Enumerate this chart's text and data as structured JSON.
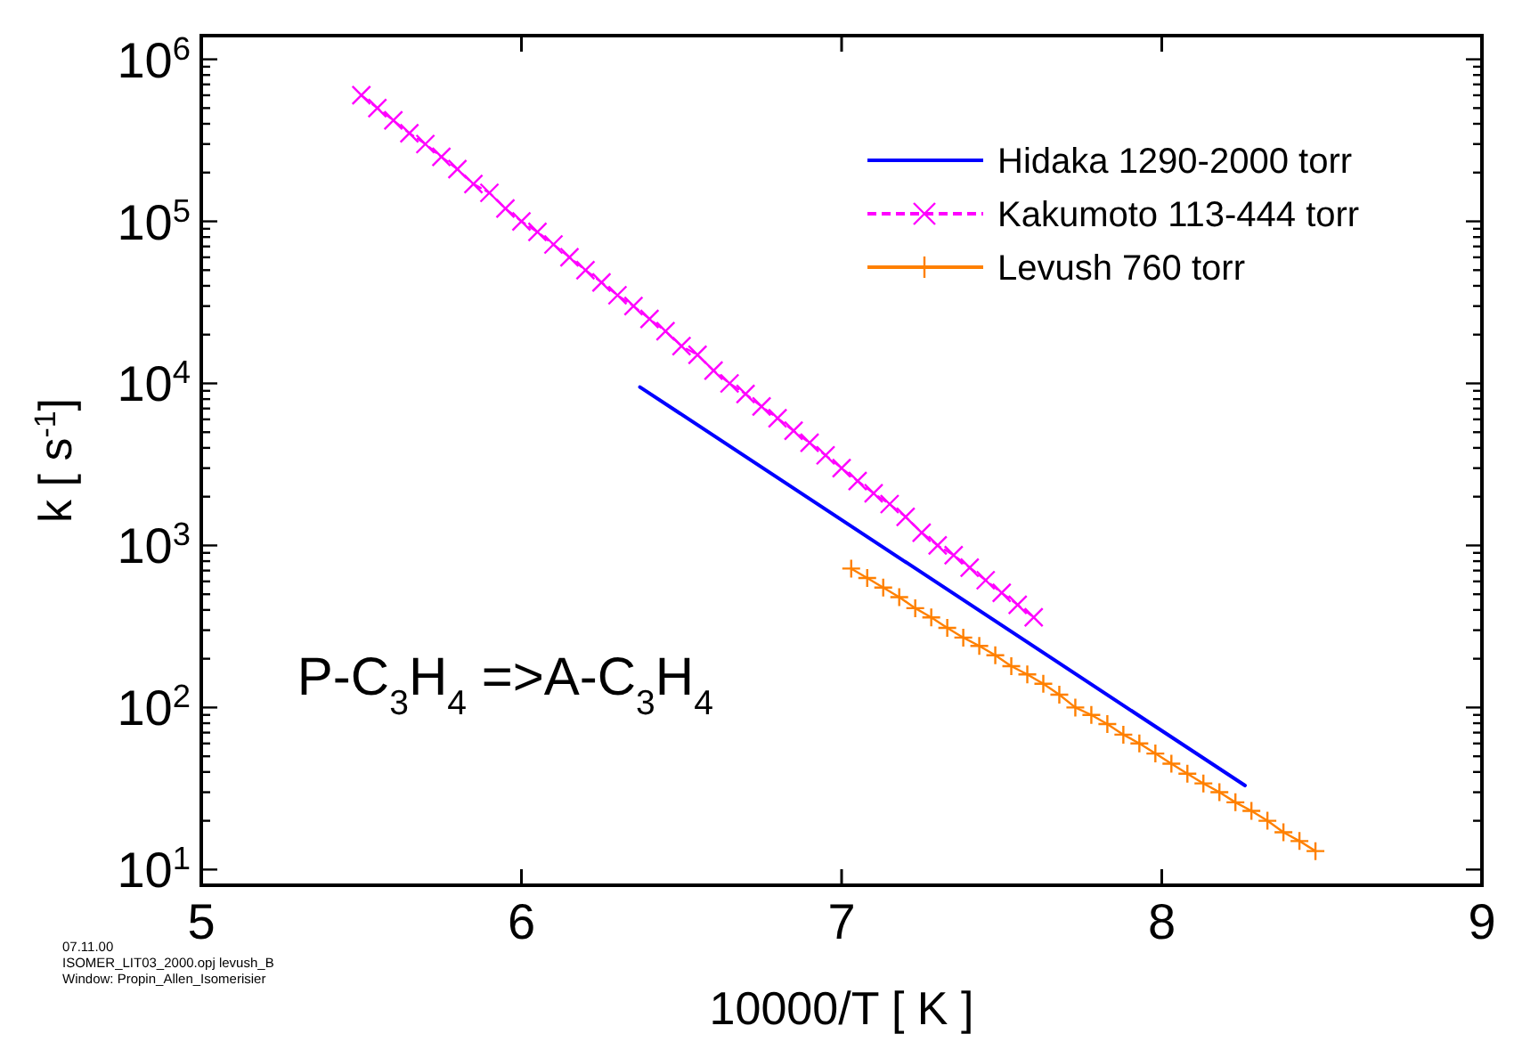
{
  "chart_data": {
    "type": "line",
    "xlabel": "10000/T [ K ]",
    "ylabel": "k [ s$^{-1}$]",
    "log": "y",
    "grid": false,
    "legend": "top right",
    "xlim": [
      5,
      9
    ],
    "xticks": [
      5,
      6,
      7,
      8,
      9
    ],
    "ylim": [
      8,
      1400000
    ],
    "yticks": [
      {
        "value": 10,
        "label": "10$^{1}$"
      },
      {
        "value": 20,
        "label": null
      },
      {
        "value": 30,
        "label": null
      },
      {
        "value": 40,
        "label": null
      },
      {
        "value": 50,
        "label": null
      },
      {
        "value": 60,
        "label": null
      },
      {
        "value": 70,
        "label": null
      },
      {
        "value": 80,
        "label": null
      },
      {
        "value": 90,
        "label": null
      },
      {
        "value": 100,
        "label": "10$^{2}$"
      },
      {
        "value": 200,
        "label": null
      },
      {
        "value": 300,
        "label": null
      },
      {
        "value": 400,
        "label": null
      },
      {
        "value": 500,
        "label": null
      },
      {
        "value": 600,
        "label": null
      },
      {
        "value": 700,
        "label": null
      },
      {
        "value": 800,
        "label": null
      },
      {
        "value": 900,
        "label": null
      },
      {
        "value": 1000,
        "label": "10$^{3}$"
      },
      {
        "value": 2000,
        "label": null
      },
      {
        "value": 3000,
        "label": null
      },
      {
        "value": 4000,
        "label": null
      },
      {
        "value": 5000,
        "label": null
      },
      {
        "value": 6000,
        "label": null
      },
      {
        "value": 7000,
        "label": null
      },
      {
        "value": 8000,
        "label": null
      },
      {
        "value": 9000,
        "label": null
      },
      {
        "value": 10000,
        "label": "10$^{4}$"
      },
      {
        "value": 20000,
        "label": null
      },
      {
        "value": 30000,
        "label": null
      },
      {
        "value": 40000,
        "label": null
      },
      {
        "value": 50000,
        "label": null
      },
      {
        "value": 60000,
        "label": null
      },
      {
        "value": 70000,
        "label": null
      },
      {
        "value": 80000,
        "label": null
      },
      {
        "value": 90000,
        "label": null
      },
      {
        "value": 100000,
        "label": "10$^{5}$"
      },
      {
        "value": 200000,
        "label": null
      },
      {
        "value": 300000,
        "label": null
      },
      {
        "value": 400000,
        "label": null
      },
      {
        "value": 500000,
        "label": null
      },
      {
        "value": 600000,
        "label": null
      },
      {
        "value": 700000,
        "label": null
      },
      {
        "value": 800000,
        "label": null
      },
      {
        "value": 900000,
        "label": null
      },
      {
        "value": 1000000,
        "label": "10$^{6}$"
      }
    ],
    "series": [
      {
        "name": "Hidaka 1290-2000 torr",
        "color": "#0000ff",
        "marker": "none",
        "line_style": "solid",
        "x": [
          6.37,
          8.26
        ],
        "values": [
          9500,
          33
        ]
      },
      {
        "name": "Kakumoto 113-444 torr",
        "color": "#ff00ff",
        "marker": "x",
        "line_style": "dashed",
        "x": [
          5.5,
          5.55,
          5.6,
          5.65,
          5.7,
          5.75,
          5.8,
          5.85,
          5.9,
          5.95,
          6,
          6.05,
          6.1,
          6.15,
          6.2,
          6.25,
          6.3,
          6.35,
          6.4,
          6.45,
          6.5,
          6.55,
          6.6,
          6.65,
          6.7,
          6.75,
          6.8,
          6.85,
          6.9,
          6.95,
          7,
          7.05,
          7.1,
          7.15,
          7.2,
          7.25,
          7.3,
          7.35,
          7.4,
          7.45,
          7.5,
          7.55,
          7.6
        ],
        "values": [
          600000,
          500000,
          420000,
          350000,
          300000,
          250000,
          210000,
          170000,
          150000,
          120000,
          100000,
          86000,
          72000,
          60000,
          50000,
          42000,
          35000,
          30000,
          25000,
          21000,
          17000,
          15000,
          12000,
          10000,
          8600,
          7200,
          6100,
          5100,
          4300,
          3600,
          3000,
          2500,
          2100,
          1800,
          1500,
          1200,
          1000,
          870,
          730,
          610,
          510,
          430,
          360
        ]
      },
      {
        "name": "Levush 760 torr",
        "color": "#ff8000",
        "marker": "cross",
        "line_style": "solid",
        "x": [
          7.03,
          7.08,
          7.13,
          7.18,
          7.23,
          7.28,
          7.33,
          7.38,
          7.43,
          7.48,
          7.53,
          7.58,
          7.63,
          7.68,
          7.73,
          7.78,
          7.83,
          7.88,
          7.93,
          7.98,
          8.03,
          8.08,
          8.13,
          8.18,
          8.23,
          8.28,
          8.33,
          8.38,
          8.43,
          8.48
        ],
        "values": [
          720,
          630,
          550,
          480,
          410,
          360,
          310,
          270,
          240,
          210,
          180,
          160,
          140,
          120,
          100,
          90,
          79,
          68,
          60,
          52,
          45,
          39,
          34,
          30,
          26,
          23,
          20,
          17,
          15,
          13
        ]
      }
    ],
    "annotations": [
      "P-C$_{3}$H$_{4}$ =>A-C$_{3}$H$_{4}$",
      "07.11.00",
      "ISOMER_LIT03_2000.opj levush_B",
      "Window: Propin_Allen_Isomerisier"
    ]
  }
}
